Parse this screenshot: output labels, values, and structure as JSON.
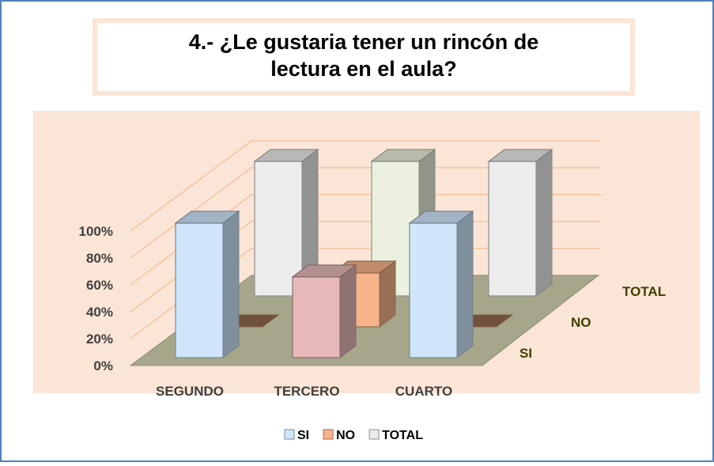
{
  "chart_data": {
    "type": "bar3d",
    "title": "4.- ¿Le gustaria tener un rincón de lectura en el aula?",
    "categories": [
      "SEGUNDO",
      "TERCERO",
      "CUARTO"
    ],
    "series": [
      {
        "name": "SI",
        "color": "#cfe6fb",
        "colors": [
          "#cfe6fb",
          "#e6b9b8",
          "#cfe6fb"
        ],
        "values": [
          100,
          60,
          100
        ]
      },
      {
        "name": "NO",
        "color": "#f7b48a",
        "colors": [
          "#f7b48a",
          "#f7b48a",
          "#f7b48a"
        ],
        "values": [
          0,
          40,
          0
        ]
      },
      {
        "name": "TOTAL",
        "color": "#ececec",
        "colors": [
          "#ececec",
          "#ebf1de",
          "#ececec"
        ],
        "values": [
          100,
          100,
          100
        ]
      }
    ],
    "ylim": [
      0,
      120
    ],
    "yticks": [
      {
        "value": 0,
        "label": "0%"
      },
      {
        "value": 20,
        "label": "20%"
      },
      {
        "value": 40,
        "label": "40%"
      },
      {
        "value": 60,
        "label": "60%"
      },
      {
        "value": 80,
        "label": "80%"
      },
      {
        "value": 100,
        "label": "100%"
      }
    ],
    "grid": true
  }
}
